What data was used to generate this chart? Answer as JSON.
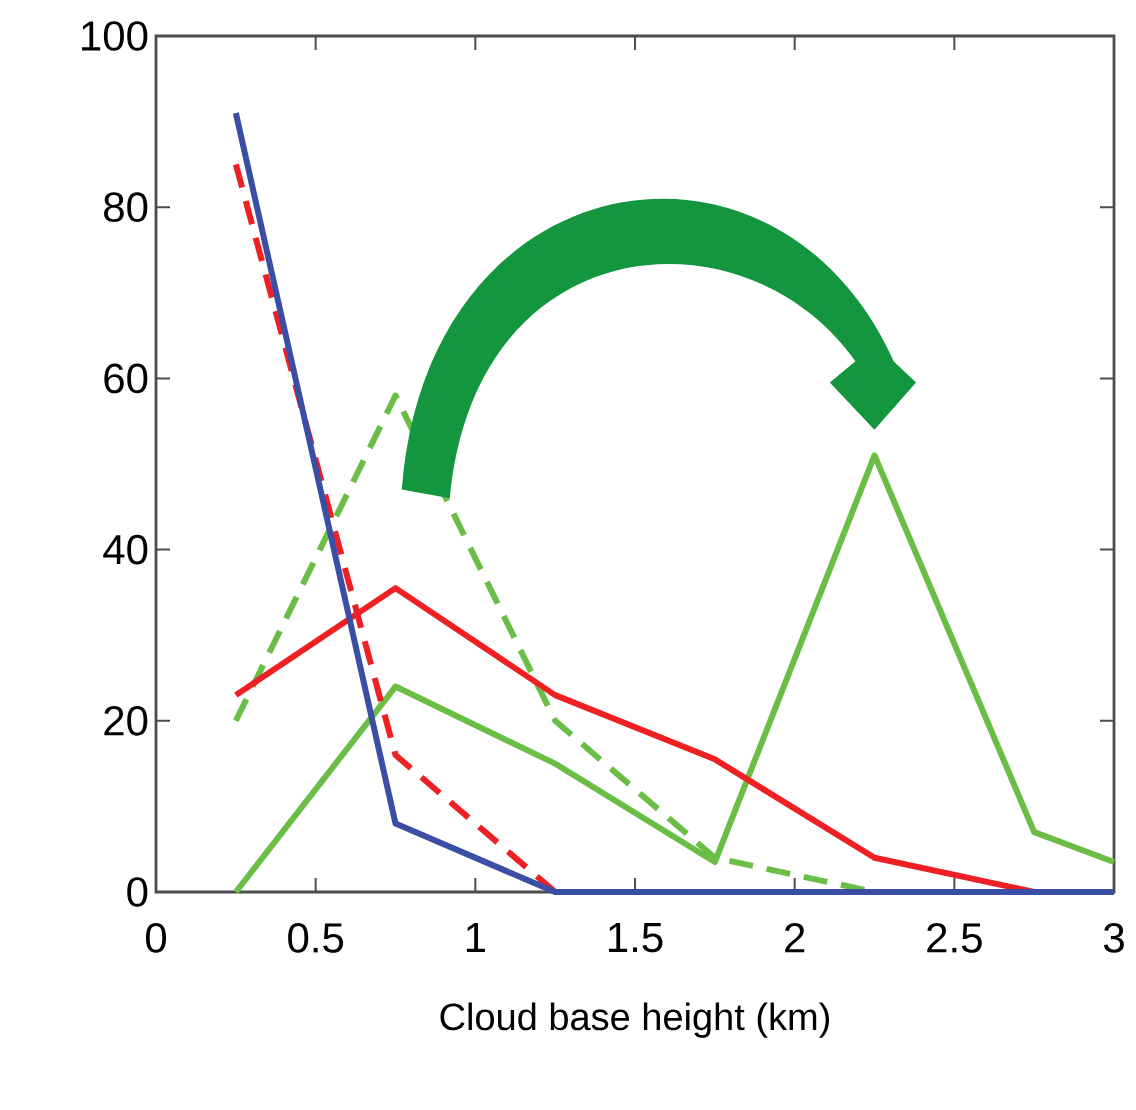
{
  "chart_data": {
    "type": "line",
    "xlabel": "Cloud base height (km)",
    "x": [
      0.25,
      0.75,
      1.25,
      1.75,
      2.25,
      2.75,
      3
    ],
    "xlim": [
      0,
      3
    ],
    "xticks": [
      0,
      0.5,
      1,
      1.5,
      2,
      2.5,
      3
    ],
    "ylim": [
      0,
      100
    ],
    "yticks": [
      0,
      20,
      40,
      60,
      80,
      100
    ],
    "series": [
      {
        "color": "#6abd45",
        "line_style": "dashed",
        "values": [
          20,
          58,
          20,
          4,
          0,
          0,
          0
        ]
      },
      {
        "color": "#6abd45",
        "line_style": "solid",
        "values": [
          0,
          24,
          15,
          3.5,
          51,
          7,
          3.5
        ]
      },
      {
        "color": "#ee2024",
        "line_style": "dashed",
        "values": [
          85,
          16,
          0,
          0,
          0,
          0,
          0
        ]
      },
      {
        "color": "#ee2024",
        "line_style": "solid",
        "values": [
          23,
          35.5,
          23,
          15.5,
          4,
          0,
          0
        ]
      },
      {
        "color": "#3b4ea6",
        "line_style": "solid",
        "values": [
          91,
          8,
          0,
          0,
          0,
          0,
          0
        ]
      }
    ]
  }
}
